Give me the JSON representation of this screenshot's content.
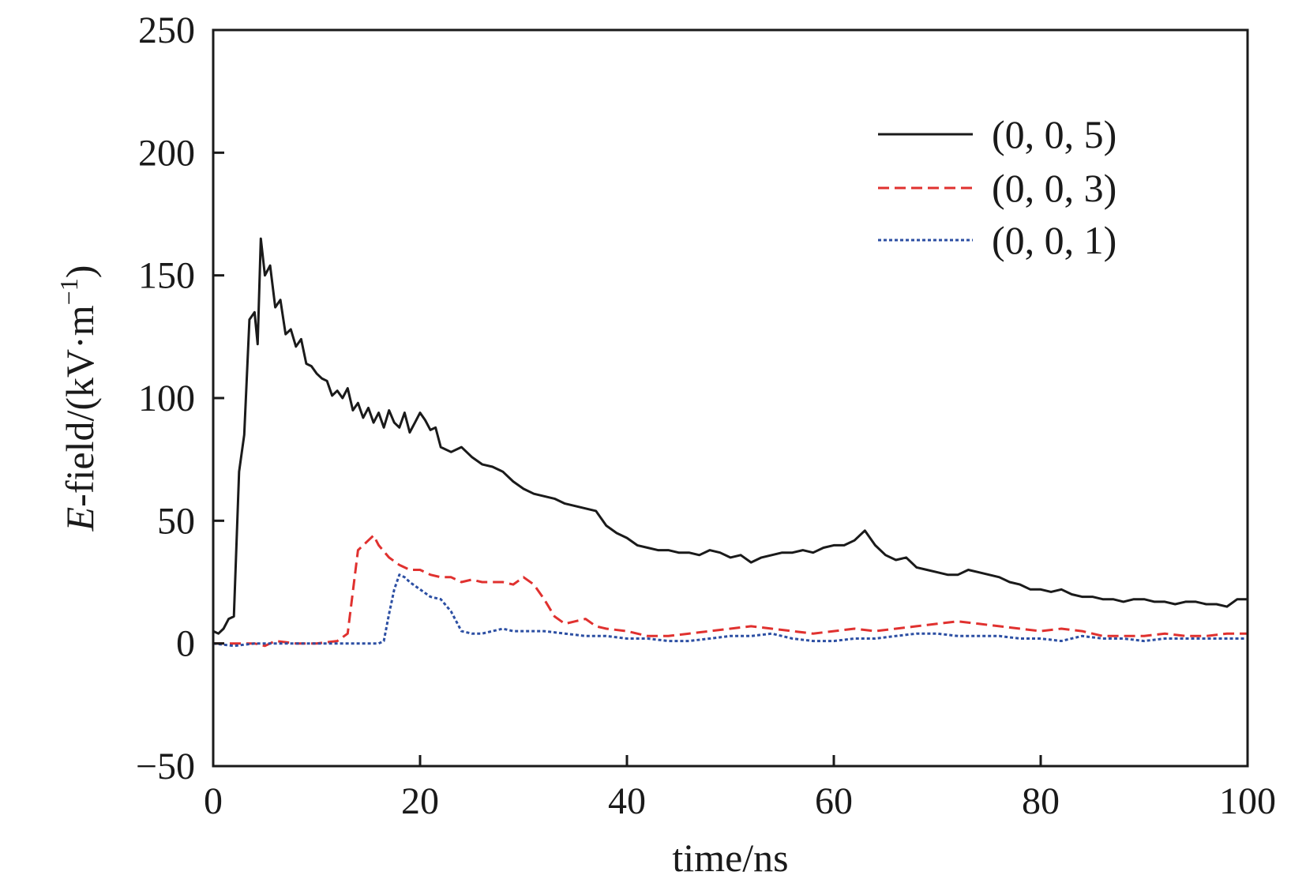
{
  "chart_data": {
    "type": "line",
    "xlabel": "time/ns",
    "ylabel": {
      "italic": "E",
      "rest": "-field/(kV·m",
      "sup": "−1",
      "close": ")"
    },
    "xlim": [
      0,
      100
    ],
    "ylim": [
      -50,
      250
    ],
    "xticks": [
      0,
      20,
      40,
      60,
      80,
      100
    ],
    "yticks": [
      -50,
      0,
      50,
      100,
      150,
      200,
      250
    ],
    "xtick_labels": [
      "0",
      "20",
      "40",
      "60",
      "80",
      "100"
    ],
    "ytick_labels": [
      "−50",
      "0",
      "50",
      "100",
      "150",
      "200",
      "250"
    ],
    "grid": false,
    "legend_position": "top-right",
    "series": [
      {
        "name": "(0, 0, 5)",
        "color": "#1a1a1a",
        "dash": "solid",
        "x": [
          0,
          0.5,
          1,
          1.5,
          2,
          2.5,
          3,
          3.5,
          4,
          4.3,
          4.6,
          5,
          5.5,
          6,
          6.5,
          7,
          7.5,
          8,
          8.5,
          9,
          9.5,
          10,
          10.5,
          11,
          11.5,
          12,
          12.5,
          13,
          13.5,
          14,
          14.5,
          15,
          15.5,
          16,
          16.5,
          17,
          17.5,
          18,
          18.5,
          19,
          19.5,
          20,
          20.5,
          21,
          21.5,
          22,
          23,
          24,
          25,
          26,
          27,
          28,
          29,
          30,
          31,
          32,
          33,
          34,
          35,
          36,
          37,
          38,
          39,
          40,
          41,
          42,
          43,
          44,
          45,
          46,
          47,
          48,
          49,
          50,
          51,
          52,
          53,
          54,
          55,
          56,
          57,
          58,
          59,
          60,
          61,
          62,
          63,
          64,
          65,
          66,
          67,
          68,
          69,
          70,
          71,
          72,
          73,
          74,
          75,
          76,
          77,
          78,
          79,
          80,
          81,
          82,
          83,
          84,
          85,
          86,
          87,
          88,
          89,
          90,
          91,
          92,
          93,
          94,
          95,
          96,
          97,
          98,
          99,
          100
        ],
        "y": [
          5,
          4,
          6,
          10,
          11,
          70,
          85,
          132,
          135,
          122,
          165,
          150,
          154,
          137,
          140,
          126,
          128,
          121,
          124,
          114,
          113,
          110,
          108,
          107,
          101,
          103,
          100,
          104,
          95,
          98,
          92,
          96,
          90,
          94,
          88,
          95,
          90,
          88,
          94,
          86,
          90,
          94,
          91,
          87,
          88,
          80,
          78,
          80,
          76,
          73,
          72,
          70,
          66,
          63,
          61,
          60,
          59,
          57,
          56,
          55,
          54,
          48,
          45,
          43,
          40,
          39,
          38,
          38,
          37,
          37,
          36,
          38,
          37,
          35,
          36,
          33,
          35,
          36,
          37,
          37,
          38,
          37,
          39,
          40,
          40,
          42,
          46,
          40,
          36,
          34,
          35,
          31,
          30,
          29,
          28,
          28,
          30,
          29,
          28,
          27,
          25,
          24,
          22,
          22,
          21,
          22,
          20,
          19,
          19,
          18,
          18,
          17,
          18,
          18,
          17,
          17,
          16,
          17,
          17,
          16,
          16,
          15,
          18,
          18
        ]
      },
      {
        "name": "(0, 0, 3)",
        "color": "#e0312f",
        "dash": "dashed",
        "x": [
          0,
          2,
          4,
          5,
          6,
          8,
          10,
          12,
          13,
          14,
          15,
          15.5,
          16,
          17,
          18,
          19,
          20,
          21,
          22,
          23,
          24,
          25,
          26,
          27,
          28,
          29,
          30,
          31,
          32,
          33,
          34,
          35,
          36,
          37,
          38,
          40,
          42,
          44,
          46,
          48,
          50,
          52,
          54,
          56,
          58,
          60,
          62,
          64,
          66,
          68,
          70,
          72,
          74,
          76,
          78,
          80,
          82,
          84,
          86,
          88,
          90,
          92,
          94,
          96,
          98,
          100
        ],
        "y": [
          0,
          0,
          0,
          -1,
          1,
          0,
          0,
          1,
          4,
          38,
          42,
          44,
          40,
          35,
          32,
          30,
          30,
          28,
          27,
          27,
          25,
          26,
          25,
          25,
          25,
          24,
          27,
          24,
          18,
          11,
          8,
          9,
          10,
          7,
          6,
          5,
          3,
          3,
          4,
          5,
          6,
          7,
          6,
          5,
          4,
          5,
          6,
          5,
          6,
          7,
          8,
          9,
          8,
          7,
          6,
          5,
          6,
          5,
          3,
          3,
          3,
          4,
          3,
          3,
          4,
          4
        ]
      },
      {
        "name": "(0, 0, 1)",
        "color": "#2c4fa3",
        "dash": "dotted",
        "x": [
          0,
          2,
          4,
          6,
          8,
          10,
          12,
          14,
          15,
          16,
          16.5,
          17,
          17.5,
          18,
          18.5,
          19,
          20,
          21,
          22,
          23,
          24,
          25,
          26,
          27,
          28,
          29,
          30,
          32,
          34,
          36,
          38,
          40,
          42,
          44,
          46,
          48,
          50,
          52,
          54,
          56,
          58,
          60,
          62,
          64,
          66,
          68,
          70,
          72,
          74,
          76,
          78,
          80,
          82,
          84,
          86,
          88,
          90,
          92,
          94,
          96,
          98,
          100
        ],
        "y": [
          0,
          -1,
          0,
          0,
          0,
          0,
          0,
          0,
          0,
          0,
          1,
          12,
          22,
          28,
          27,
          25,
          22,
          19,
          18,
          13,
          5,
          4,
          4,
          5,
          6,
          5,
          5,
          5,
          4,
          3,
          3,
          2,
          2,
          1,
          1,
          2,
          3,
          3,
          4,
          2,
          1,
          1,
          2,
          2,
          3,
          4,
          4,
          3,
          3,
          3,
          2,
          2,
          1,
          3,
          2,
          2,
          1,
          2,
          2,
          2,
          2,
          2
        ]
      }
    ]
  }
}
